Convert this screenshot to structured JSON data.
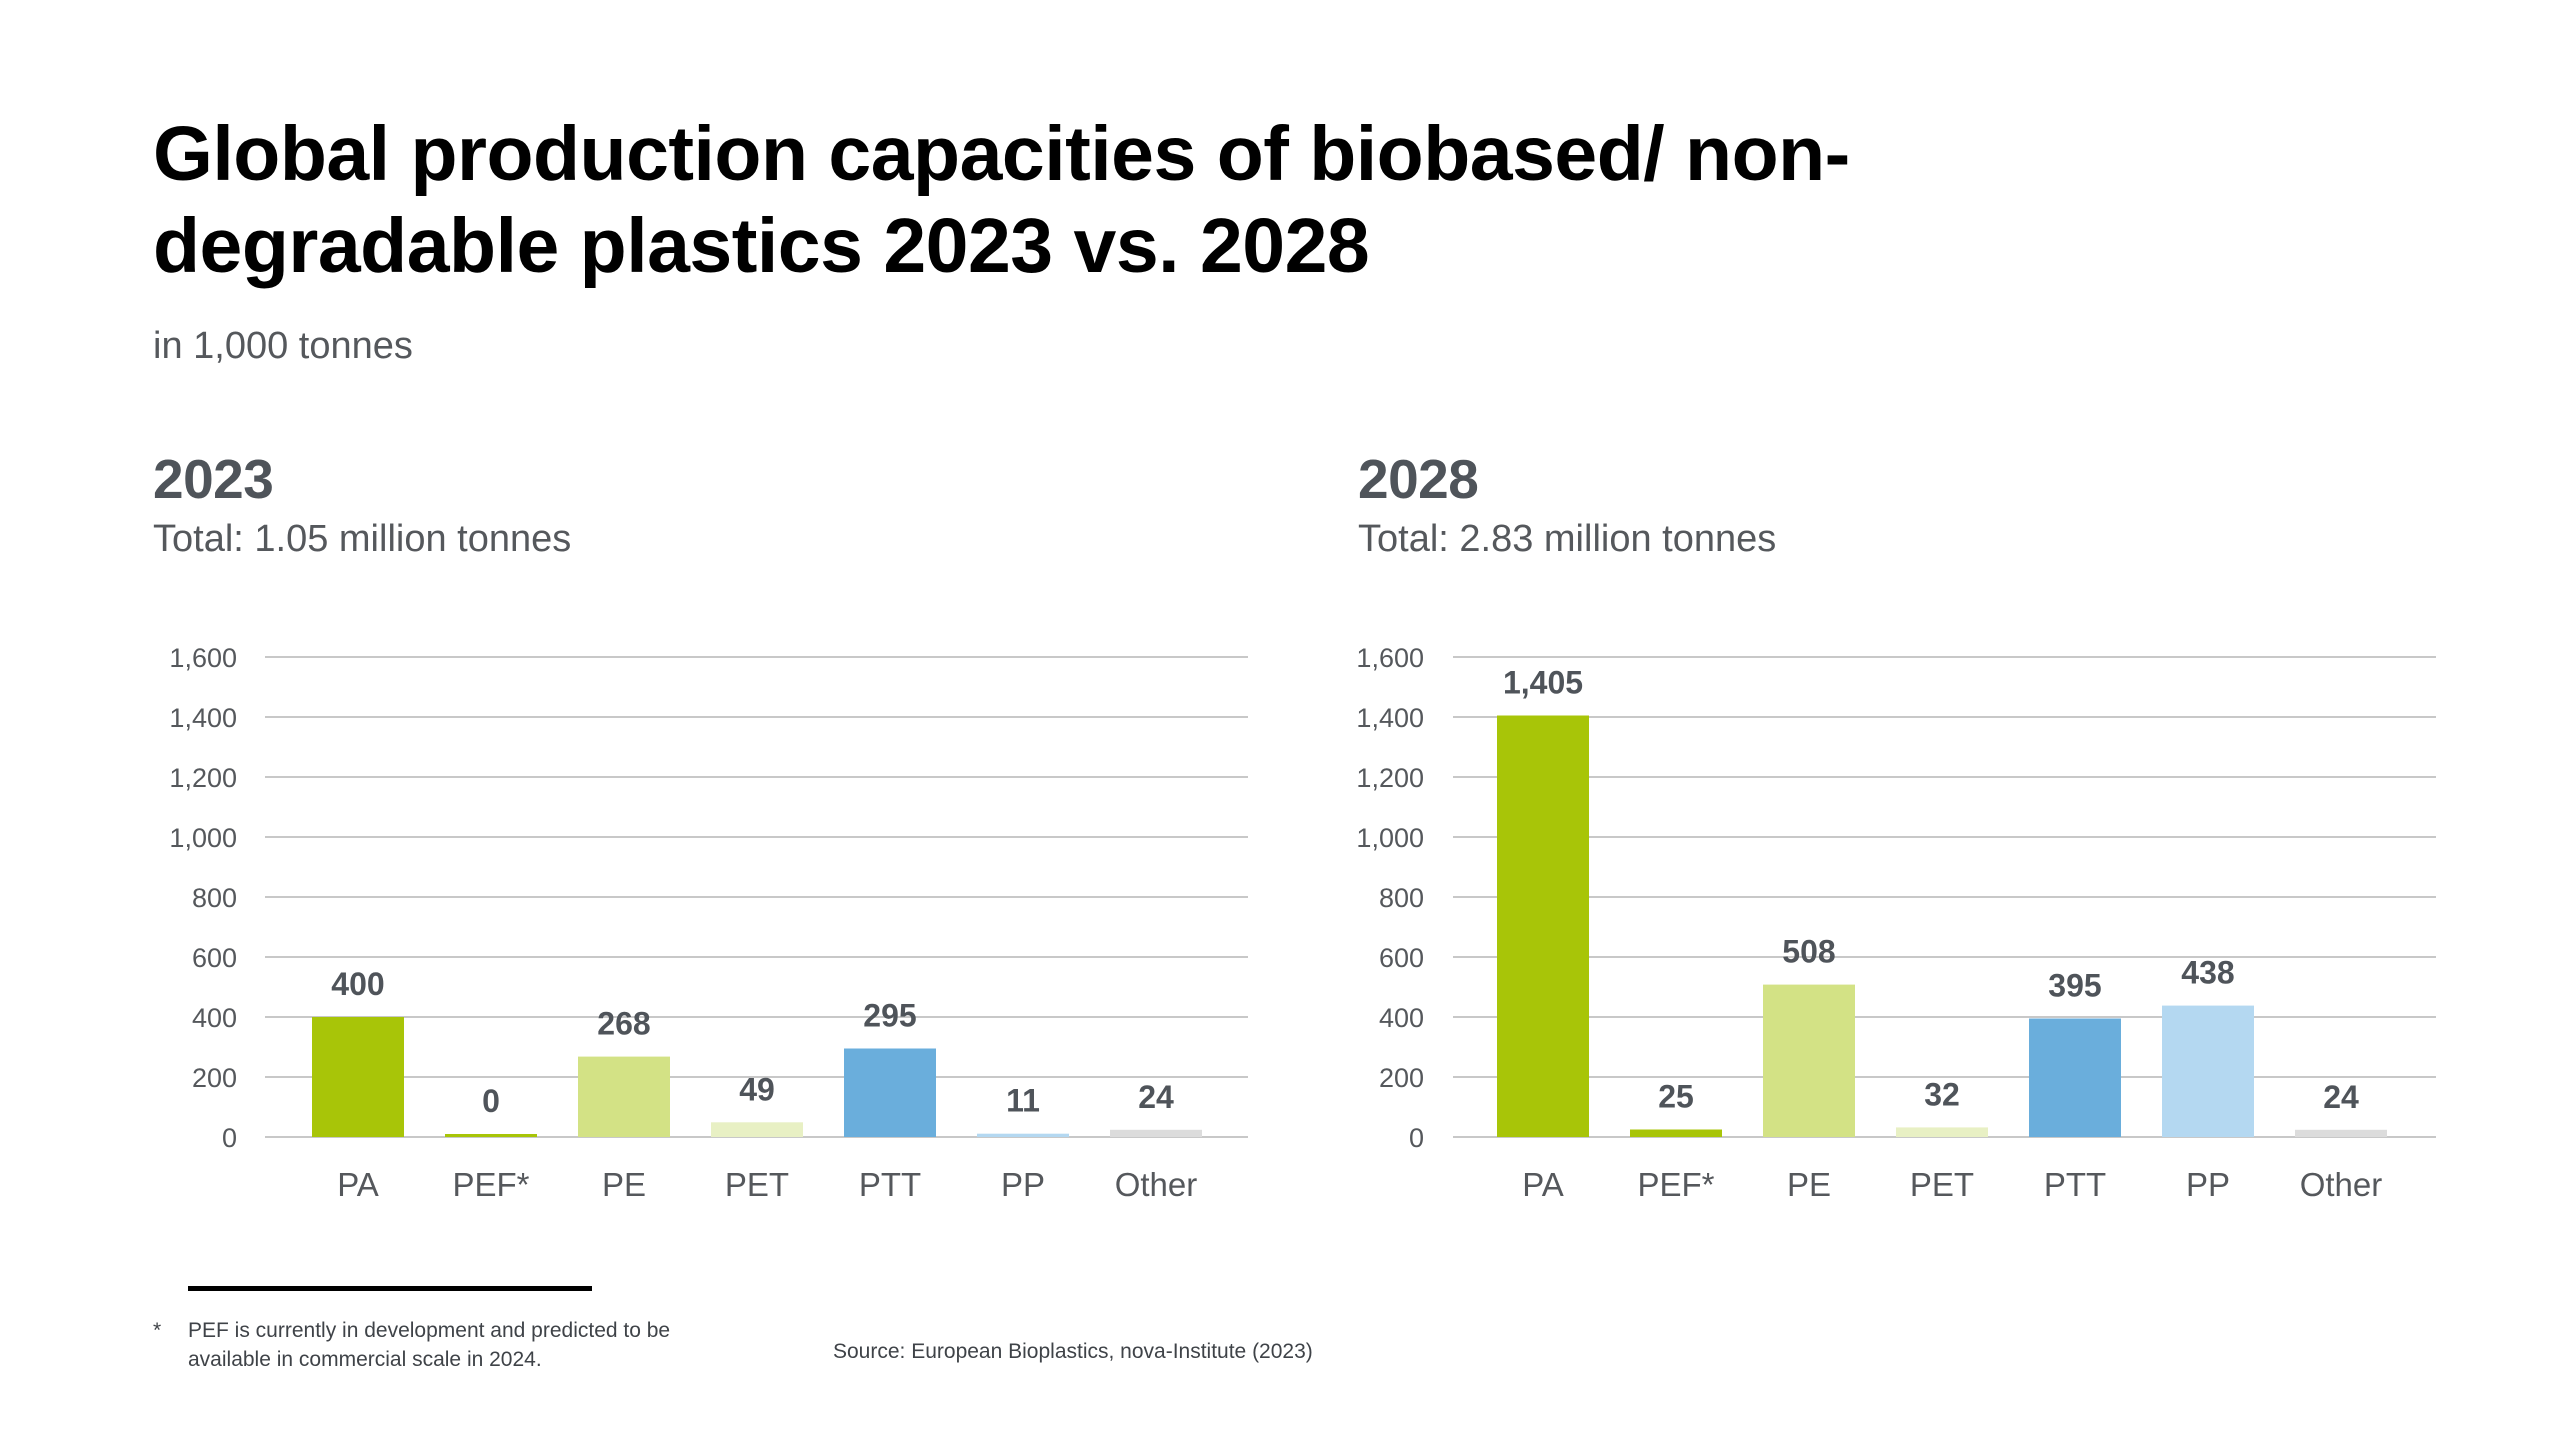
{
  "title": "Global production capacities of biobased/ non-degradable plastics 2023 vs. 2028",
  "subtitle": "in 1,000 tonnes",
  "footnote": {
    "marker": "*",
    "text": "PEF is currently in development and predicted to be available in commercial scale in 2024."
  },
  "source": "Source: European Bioplastics, nova-Institute (2023)",
  "colors": {
    "PA": "#a8c508",
    "PEF*": "#a8c508",
    "PE": "#d3e285",
    "PET": "#e8f0c4",
    "PTT": "#6aaedc",
    "PP": "#b4d8f1",
    "Other": "#dcdcdc",
    "axis_text": "#55585c",
    "value_text": "#4f545a",
    "grid": "#c8c8c8"
  },
  "chart_data": [
    {
      "type": "bar",
      "panel_title": "2023",
      "total_label": "Total: 1.05 million tonnes",
      "categories": [
        "PA",
        "PEF*",
        "PE",
        "PET",
        "PTT",
        "PP",
        "Other"
      ],
      "values": [
        400,
        0,
        268,
        49,
        295,
        11,
        24
      ],
      "value_labels": [
        "400",
        "0",
        "268",
        "49",
        "295",
        "11",
        "24"
      ],
      "ylim": [
        0,
        1600
      ],
      "yticks": [
        0,
        200,
        400,
        600,
        800,
        1000,
        1200,
        1400,
        1600
      ],
      "ytick_labels": [
        "0",
        "200",
        "400",
        "600",
        "800",
        "1,000",
        "1,200",
        "1,400",
        "1,600"
      ],
      "grid": true
    },
    {
      "type": "bar",
      "panel_title": "2028",
      "total_label": "Total: 2.83 million tonnes",
      "categories": [
        "PA",
        "PEF*",
        "PE",
        "PET",
        "PTT",
        "PP",
        "Other"
      ],
      "values": [
        1405,
        25,
        508,
        32,
        395,
        438,
        24
      ],
      "value_labels": [
        "1,405",
        "25",
        "508",
        "32",
        "395",
        "438",
        "24"
      ],
      "ylim": [
        0,
        1600
      ],
      "yticks": [
        0,
        200,
        400,
        600,
        800,
        1000,
        1200,
        1400,
        1600
      ],
      "ytick_labels": [
        "0",
        "200",
        "400",
        "600",
        "800",
        "1,000",
        "1,200",
        "1,400",
        "1,600"
      ],
      "grid": true
    }
  ]
}
